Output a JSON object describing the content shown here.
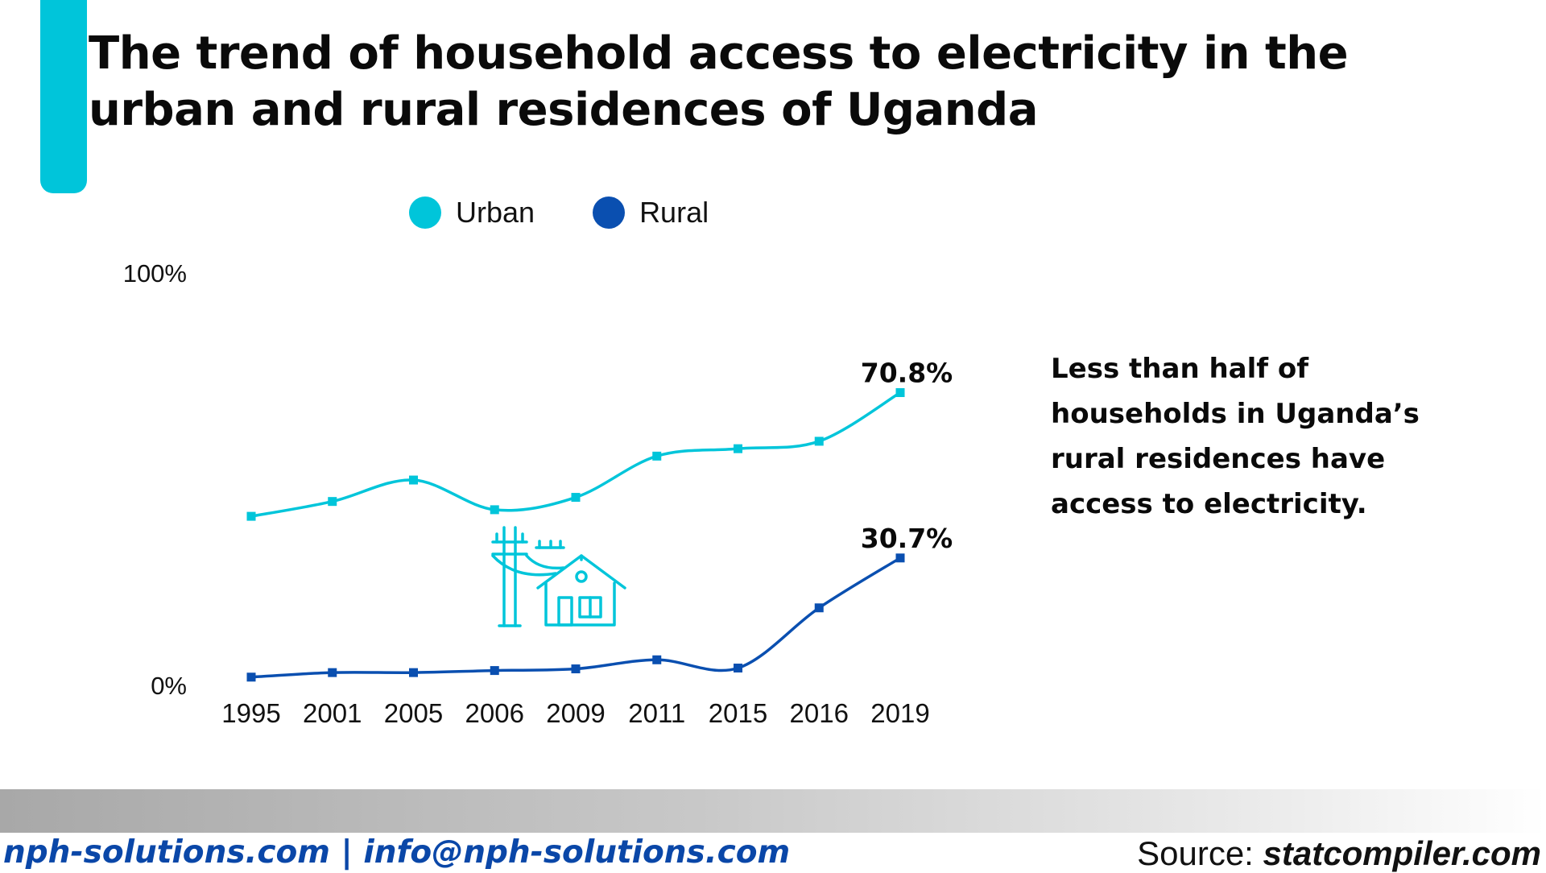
{
  "title": "The trend of household access to electricity in the urban and rural residences of Uganda",
  "insight": "Less than half of households in Uganda’s rural residences have access to electricity.",
  "footer": {
    "contact": "nph-solutions.com | info@nph-solutions.com",
    "source_label": "Source:",
    "source_site": "statcompiler.com"
  },
  "icons": [
    "electric-pole-house-icon"
  ],
  "colors": {
    "urban": "#00C5DA",
    "rural": "#0A4FB0",
    "accent": "#00C5DA",
    "footer_text": "#0A47A8"
  },
  "chart_data": {
    "type": "line",
    "title": "The trend of household access to electricity in the urban and rural residences of Uganda",
    "xlabel": "",
    "ylabel": "",
    "x": [
      "1995",
      "2001",
      "2005",
      "2006",
      "2009",
      "2011",
      "2015",
      "2016",
      "2019"
    ],
    "ylim": [
      0,
      100
    ],
    "yticks": [
      "0%",
      "100%"
    ],
    "grid": false,
    "legend": "top",
    "series": [
      {
        "name": "Urban",
        "color": "#00C5DA",
        "values": [
          40.8,
          44.4,
          49.6,
          42.4,
          45.4,
          55.4,
          57.2,
          59.0,
          70.8
        ],
        "end_label": "70.8%"
      },
      {
        "name": "Rural",
        "color": "#0A4FB0",
        "values": [
          1.8,
          2.9,
          2.9,
          3.4,
          3.8,
          6.0,
          4.0,
          18.6,
          30.7
        ],
        "end_label": "30.7%"
      }
    ]
  }
}
